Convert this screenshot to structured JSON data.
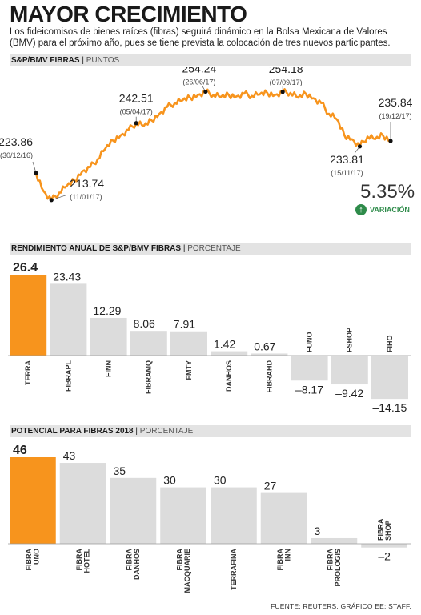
{
  "header": {
    "title": "MAYOR CRECIMIENTO",
    "intro": "Los fideicomisos de bienes raíces (fibras) seguirá dinámico en la Bolsa Mexicana de Valores (BMV) para el próximo año, pues se tiene prevista la colocación de tres nuevos participantes."
  },
  "colors": {
    "accent": "#F7941D",
    "bar_gray": "#DCDCDC",
    "header_bg": "#E3E3E3",
    "positive": "#2E8B4A"
  },
  "icons": {
    "variation": "up-arrow-icon"
  },
  "line_section": {
    "title": "S&P/BMV FIBRAS",
    "unit": "PUNTOS",
    "variation_value": "5.35%",
    "variation_label": "VARIACIÓN"
  },
  "rend_section": {
    "title": "RENDIMIENTO ANUAL DE S&P/BMV FIBRAS",
    "unit": "PORCENTAJE"
  },
  "pot_section": {
    "title": "POTENCIAL PARA FIBRAS 2018",
    "unit": "PORCENTAJE"
  },
  "source": "FUENTE: REUTERS. GRÁFICO EE: STAFF.",
  "chart_data": [
    {
      "type": "line",
      "title": "S&P/BMV FIBRAS",
      "ylabel": "PUNTOS",
      "x_range": [
        "30/12/16",
        "19/12/17"
      ],
      "approx_series": [
        223.86,
        217.0,
        213.74,
        216.5,
        219.0,
        221.0,
        224.5,
        226.0,
        229.0,
        233.0,
        236.0,
        238.0,
        240.0,
        242.51,
        241.5,
        243.5,
        246.0,
        248.5,
        250.0,
        251.0,
        252.0,
        253.0,
        254.24,
        253.0,
        252.3,
        253.0,
        252.5,
        253.5,
        252.7,
        253.2,
        253.8,
        253.0,
        254.18,
        253.8,
        252.0,
        253.5,
        251.8,
        250.0,
        246.0,
        244.0,
        238.0,
        236.5,
        233.81,
        237.5,
        236.5,
        238.0,
        235.84
      ],
      "annotations": [
        {
          "value": "223.86",
          "date": "(30/12/16)",
          "index": 0
        },
        {
          "value": "213.74",
          "date": "(11/01/17)",
          "index": 2
        },
        {
          "value": "242.51",
          "date": "(05/04/17)",
          "index": 13
        },
        {
          "value": "254.24",
          "date": "(26/06/17)",
          "index": 22
        },
        {
          "value": "254.18",
          "date": "(07/09/17)",
          "index": 32
        },
        {
          "value": "233.81",
          "date": "(15/11/17)",
          "index": 42
        },
        {
          "value": "235.84",
          "date": "(19/12/17)",
          "index": 46
        }
      ],
      "ylim": [
        208,
        258
      ]
    },
    {
      "type": "bar",
      "title": "RENDIMIENTO ANUAL DE S&P/BMV FIBRAS",
      "ylabel": "PORCENTAJE",
      "categories": [
        "TERRA",
        "FIBRAPL",
        "FINN",
        "FIBRAMQ",
        "FMTY",
        "DANHOS",
        "FIBRAHD",
        "FUNO",
        "FSHOP",
        "FIHO"
      ],
      "values": [
        26.4,
        23.43,
        12.29,
        8.06,
        7.91,
        1.42,
        0.67,
        -8.17,
        -9.42,
        -14.15
      ],
      "labels": [
        "26.4",
        "23.43",
        "12.29",
        "8.06",
        "7.91",
        "1.42",
        "0.67",
        "–8.17",
        "–9.42",
        "–14.15"
      ],
      "highlight_index": 0
    },
    {
      "type": "bar",
      "title": "POTENCIAL PARA FIBRAS 2018",
      "ylabel": "PORCENTAJE",
      "categories": [
        [
          "FIBRA",
          "UNO"
        ],
        [
          "FIBRA",
          "HOTEL"
        ],
        [
          "FIBRA",
          "DANHOS"
        ],
        [
          "FIBRA",
          "MACQUARIE"
        ],
        [
          "TERRAFINA"
        ],
        [
          "FIBRA",
          "INN"
        ],
        [
          "FIBRA",
          "PROLOGIS"
        ],
        [
          "FIBRA",
          "SHOP"
        ]
      ],
      "values": [
        46,
        43,
        35,
        30,
        30,
        27,
        3,
        -2
      ],
      "labels": [
        "46",
        "43",
        "35",
        "30",
        "30",
        "27",
        "3",
        "–2"
      ],
      "highlight_index": 0
    }
  ]
}
